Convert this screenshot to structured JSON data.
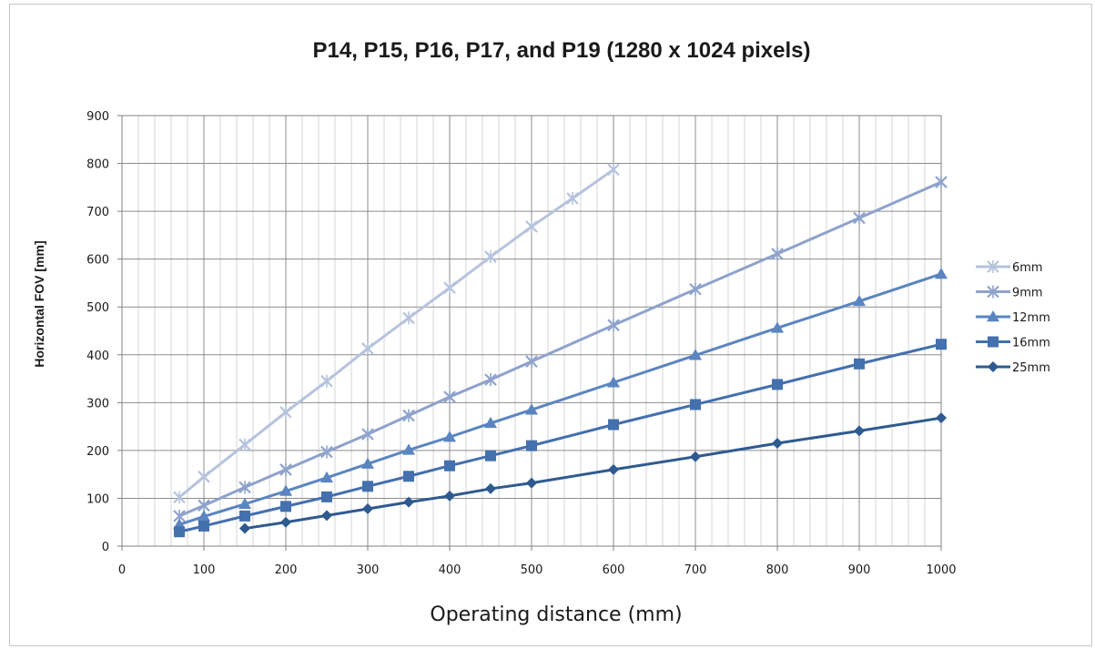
{
  "chart_data": {
    "type": "line",
    "title": "P14, P15, P16, P17, and P19 (1280 x 1024 pixels)",
    "xlabel": "Operating distance (mm)",
    "ylabel": "Horizontal FOV [mm]",
    "xlim": [
      0,
      1000
    ],
    "ylim": [
      0,
      900
    ],
    "x_ticks": [
      "0",
      "100",
      "200",
      "300",
      "400",
      "500",
      "600",
      "700",
      "800",
      "900",
      "1000"
    ],
    "y_ticks": [
      "0",
      "100",
      "200",
      "300",
      "400",
      "500",
      "600",
      "700",
      "800",
      "900"
    ],
    "grid": true,
    "legend_position": "right",
    "series": [
      {
        "name": "6mm",
        "color": "#b6c3dd",
        "marker": "x",
        "x": [
          70,
          100,
          150,
          200,
          250,
          300,
          350,
          400,
          450,
          500,
          550,
          600
        ],
        "y": [
          102,
          145,
          212,
          280,
          345,
          413,
          477,
          540,
          605,
          668,
          727,
          787
        ]
      },
      {
        "name": "9mm",
        "color": "#8ea2cc",
        "marker": "x",
        "x": [
          70,
          100,
          150,
          200,
          250,
          300,
          350,
          400,
          450,
          500,
          600,
          700,
          800,
          900,
          1000
        ],
        "y": [
          63,
          85,
          123,
          160,
          197,
          234,
          273,
          312,
          348,
          386,
          462,
          537,
          611,
          686,
          761
        ]
      },
      {
        "name": "12mm",
        "color": "#5b85c1",
        "marker": "triangle",
        "x": [
          70,
          100,
          150,
          200,
          250,
          300,
          350,
          400,
          450,
          500,
          600,
          700,
          800,
          900,
          1000
        ],
        "y": [
          45,
          62,
          88,
          115,
          143,
          172,
          201,
          228,
          257,
          285,
          342,
          399,
          456,
          512,
          569
        ]
      },
      {
        "name": "16mm",
        "color": "#4470ae",
        "marker": "square",
        "x": [
          70,
          100,
          150,
          200,
          250,
          300,
          350,
          400,
          450,
          500,
          600,
          700,
          800,
          900,
          1000
        ],
        "y": [
          30,
          42,
          63,
          83,
          103,
          125,
          146,
          168,
          189,
          210,
          254,
          296,
          338,
          381,
          422
        ]
      },
      {
        "name": "25mm",
        "color": "#2f5a90",
        "marker": "diamond",
        "x": [
          150,
          200,
          250,
          300,
          350,
          400,
          450,
          500,
          600,
          700,
          800,
          900,
          1000
        ],
        "y": [
          37,
          50,
          64,
          78,
          92,
          105,
          120,
          132,
          160,
          187,
          215,
          241,
          268
        ]
      }
    ]
  }
}
